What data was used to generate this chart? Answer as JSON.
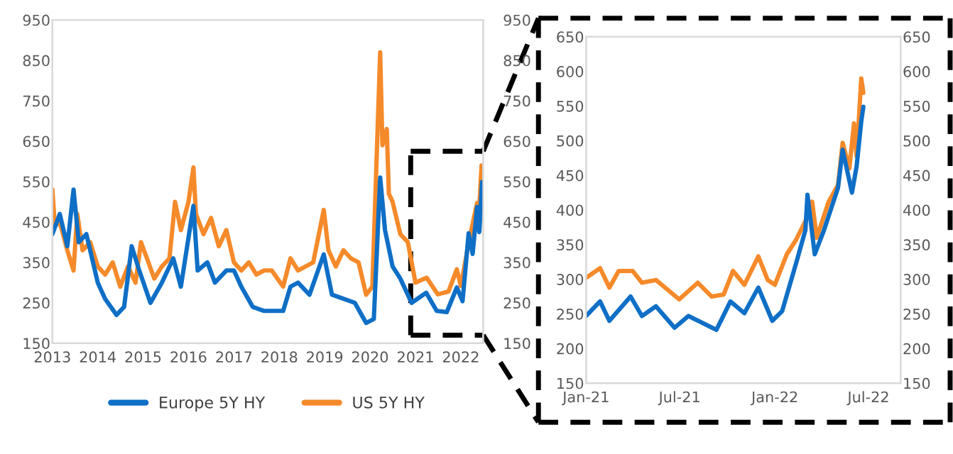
{
  "chart_data": [
    {
      "type": "line",
      "xlim": [
        "2013-01-01",
        "2022-06-30"
      ],
      "xticks": [
        "2013",
        "2014",
        "2015",
        "2016",
        "2017",
        "2018",
        "2019",
        "2020",
        "2021",
        "2022"
      ],
      "ylim": [
        150,
        950
      ],
      "yticks": [
        150,
        250,
        350,
        450,
        550,
        650,
        750,
        850,
        950
      ],
      "y2lim": [
        150,
        950
      ],
      "y2ticks": [
        150,
        250,
        350,
        450,
        550,
        650,
        750,
        850,
        950
      ],
      "grid": false,
      "legend": "bottom",
      "series": [
        {
          "name": "Europe 5Y HY",
          "color": "#0f6fc6",
          "x": [
            "2013-01-01",
            "2013-03-01",
            "2013-05-01",
            "2013-06-20",
            "2013-08-01",
            "2013-10-01",
            "2014-01-01",
            "2014-03-01",
            "2014-06-01",
            "2014-08-01",
            "2014-10-01",
            "2014-12-01",
            "2015-03-01",
            "2015-06-01",
            "2015-09-01",
            "2015-11-01",
            "2016-02-10",
            "2016-03-15",
            "2016-06-01",
            "2016-08-01",
            "2016-11-01",
            "2017-01-01",
            "2017-03-01",
            "2017-06-01",
            "2017-09-01",
            "2017-12-01",
            "2018-02-01",
            "2018-04-01",
            "2018-06-01",
            "2018-09-01",
            "2018-12-25",
            "2019-03-01",
            "2019-06-01",
            "2019-09-01",
            "2019-12-01",
            "2020-02-01",
            "2020-03-23",
            "2020-05-01",
            "2020-07-01",
            "2020-09-01",
            "2020-12-01",
            "2021-03-28",
            "2021-06-21",
            "2021-09-10",
            "2021-11-30",
            "2022-01-15",
            "2022-03-05",
            "2022-04-06",
            "2022-05-12",
            "2022-05-30",
            "2022-06-21"
          ],
          "values": [
            420,
            470,
            390,
            530,
            400,
            420,
            300,
            260,
            220,
            240,
            390,
            330,
            250,
            300,
            360,
            290,
            490,
            330,
            350,
            300,
            330,
            330,
            290,
            240,
            230,
            230,
            230,
            290,
            300,
            270,
            370,
            270,
            260,
            250,
            200,
            210,
            560,
            430,
            340,
            310,
            250,
            275,
            230,
            227,
            288,
            254,
            422,
            371,
            487,
            425,
            549
          ]
        },
        {
          "name": "US 5Y HY",
          "color": "#f58a2a",
          "x": [
            "2013-01-01",
            "2013-01-20",
            "2013-03-01",
            "2013-05-01",
            "2013-06-20",
            "2013-07-20",
            "2013-09-01",
            "2013-11-01",
            "2014-01-01",
            "2014-03-01",
            "2014-05-01",
            "2014-07-01",
            "2014-09-01",
            "2014-11-01",
            "2014-12-15",
            "2015-02-01",
            "2015-04-01",
            "2015-06-01",
            "2015-08-01",
            "2015-09-15",
            "2015-11-01",
            "2016-01-01",
            "2016-02-10",
            "2016-03-01",
            "2016-05-01",
            "2016-07-01",
            "2016-09-01",
            "2016-11-01",
            "2017-01-01",
            "2017-03-01",
            "2017-05-01",
            "2017-07-01",
            "2017-09-01",
            "2017-11-01",
            "2018-02-01",
            "2018-04-01",
            "2018-06-01",
            "2018-08-01",
            "2018-10-01",
            "2018-12-25",
            "2019-02-01",
            "2019-04-01",
            "2019-06-01",
            "2019-08-01",
            "2019-10-01",
            "2019-12-01",
            "2020-01-20",
            "2020-03-23",
            "2020-04-10",
            "2020-05-15",
            "2020-06-01",
            "2020-07-01",
            "2020-09-01",
            "2020-11-01",
            "2021-01-01",
            "2021-04-01",
            "2021-06-30",
            "2021-09-24",
            "2021-11-30",
            "2022-01-01",
            "2022-03-14",
            "2022-05-12",
            "2022-05-25",
            "2022-06-17",
            "2022-06-21"
          ],
          "values": [
            530,
            440,
            450,
            380,
            330,
            470,
            380,
            400,
            340,
            320,
            350,
            290,
            340,
            300,
            400,
            360,
            310,
            340,
            360,
            500,
            430,
            500,
            585,
            470,
            420,
            460,
            390,
            430,
            350,
            330,
            350,
            320,
            330,
            330,
            290,
            360,
            330,
            340,
            350,
            480,
            380,
            340,
            380,
            360,
            350,
            270,
            290,
            870,
            640,
            680,
            520,
            500,
            420,
            400,
            300,
            312,
            271,
            278,
            333,
            292,
            412,
            497,
            460,
            590,
            569
          ]
        }
      ]
    },
    {
      "type": "line",
      "xlim": [
        "2021-01-01",
        "2022-09-01"
      ],
      "xticks": [
        {
          "value": "2021-01-01",
          "label": "Jan-21"
        },
        {
          "value": "2021-07-01",
          "label": "Jul-21"
        },
        {
          "value": "2022-01-01",
          "label": "Jan-22"
        },
        {
          "value": "2022-07-01",
          "label": "Jul-22"
        }
      ],
      "ylim": [
        150,
        650
      ],
      "yticks": [
        150,
        200,
        250,
        300,
        350,
        400,
        450,
        500,
        550,
        600,
        650
      ],
      "y2lim": [
        150,
        650
      ],
      "y2ticks": [
        150,
        200,
        250,
        300,
        350,
        400,
        450,
        500,
        550,
        600,
        650
      ],
      "grid": false,
      "series": [
        {
          "color": "#0f6fc6",
          "x": [
            "2021-01-01",
            "2021-01-28",
            "2021-02-15",
            "2021-03-28",
            "2021-04-19",
            "2021-05-16",
            "2021-06-21",
            "2021-07-18",
            "2021-09-10",
            "2021-10-07",
            "2021-11-03",
            "2021-11-30",
            "2021-12-27",
            "2022-01-15",
            "2022-02-11",
            "2022-03-01",
            "2022-03-05",
            "2022-03-19",
            "2022-04-06",
            "2022-05-03",
            "2022-05-12",
            "2022-05-30",
            "2022-06-08",
            "2022-06-17",
            "2022-06-21"
          ],
          "values": [
            247,
            268,
            240,
            275,
            247,
            261,
            230,
            247,
            227,
            268,
            251,
            288,
            240,
            254,
            323,
            371,
            422,
            336,
            371,
            432,
            487,
            425,
            463,
            528,
            549
          ]
        },
        {
          "color": "#f58a2a",
          "x": [
            "2021-01-01",
            "2021-01-28",
            "2021-02-15",
            "2021-03-05",
            "2021-04-01",
            "2021-04-19",
            "2021-05-16",
            "2021-06-30",
            "2021-08-05",
            "2021-09-01",
            "2021-09-24",
            "2021-10-12",
            "2021-11-03",
            "2021-11-30",
            "2021-12-18",
            "2022-01-01",
            "2022-01-24",
            "2022-02-11",
            "2022-03-01",
            "2022-03-14",
            "2022-03-23",
            "2022-04-15",
            "2022-05-03",
            "2022-05-12",
            "2022-05-25",
            "2022-06-03",
            "2022-06-08",
            "2022-06-17",
            "2022-06-21"
          ],
          "values": [
            302,
            316,
            288,
            312,
            312,
            295,
            299,
            271,
            295,
            275,
            278,
            312,
            292,
            333,
            299,
            292,
            336,
            357,
            384,
            412,
            360,
            412,
            436,
            497,
            460,
            525,
            477,
            590,
            569
          ]
        }
      ]
    }
  ]
}
